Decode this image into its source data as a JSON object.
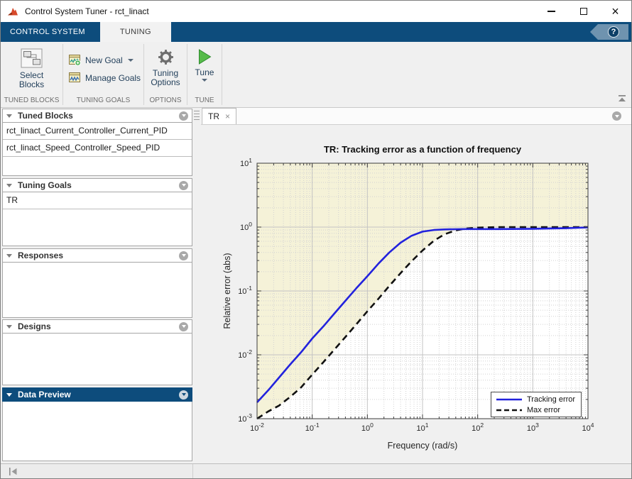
{
  "window": {
    "title": "Control System Tuner - rct_linact",
    "close_glyph": "×"
  },
  "ribbon": {
    "tabs": [
      {
        "label": "CONTROL SYSTEM",
        "active": false
      },
      {
        "label": "TUNING",
        "active": true
      }
    ],
    "help_glyph": "?",
    "groups": [
      {
        "label": "TUNED BLOCKS",
        "buttons": [
          {
            "label": "Select Blocks"
          }
        ]
      },
      {
        "label": "TUNING GOALS",
        "buttons": [
          {
            "label": "New Goal",
            "has_dropdown": true
          },
          {
            "label": "Manage Goals",
            "has_dropdown": false
          }
        ]
      },
      {
        "label": "OPTIONS",
        "buttons": [
          {
            "label": "Tuning Options"
          }
        ]
      },
      {
        "label": "TUNE",
        "buttons": [
          {
            "label": "Tune",
            "has_dropdown": true
          }
        ]
      }
    ]
  },
  "sidebar": {
    "panels": [
      {
        "title": "Tuned Blocks",
        "items": [
          "rct_linact_Current_Controller_Current_PID",
          "rct_linact_Speed_Controller_Speed_PID"
        ],
        "selected": false
      },
      {
        "title": "Tuning Goals",
        "items": [
          "TR"
        ],
        "selected": false
      },
      {
        "title": "Responses",
        "items": [],
        "selected": false
      },
      {
        "title": "Designs",
        "items": [],
        "selected": false
      },
      {
        "title": "Data Preview",
        "items": [],
        "selected": true
      }
    ]
  },
  "main": {
    "tabs": [
      {
        "label": "TR",
        "active": true,
        "close_glyph": "×"
      }
    ]
  },
  "chart_data": {
    "type": "line",
    "title": "TR: Tracking error as a function of frequency",
    "xlabel": "Frequency (rad/s)",
    "ylabel": "Relative error (abs)",
    "xscale": "log",
    "yscale": "log",
    "xlim": [
      0.01,
      10000
    ],
    "ylim": [
      0.001,
      10
    ],
    "xtick_exponents": [
      -2,
      -1,
      0,
      1,
      2,
      3,
      4
    ],
    "ytick_exponents": [
      -3,
      -2,
      -1,
      0,
      1
    ],
    "grid": true,
    "minor_grid": true,
    "legend_position": "lower right",
    "shaded_region": {
      "bound_series": "Max error",
      "side": "above",
      "fill": "#f5f2d8"
    },
    "series": [
      {
        "name": "Tracking error",
        "color": "#2222dd",
        "style": "solid",
        "width": 2.6,
        "x": [
          0.01,
          0.016,
          0.025,
          0.04,
          0.063,
          0.1,
          0.16,
          0.25,
          0.4,
          0.63,
          1,
          1.6,
          2.5,
          4,
          6.3,
          10,
          16,
          25,
          40,
          63,
          100,
          250,
          1000,
          4000,
          10000
        ],
        "y": [
          0.0018,
          0.0028,
          0.0044,
          0.0071,
          0.011,
          0.018,
          0.028,
          0.044,
          0.07,
          0.11,
          0.17,
          0.27,
          0.4,
          0.57,
          0.73,
          0.85,
          0.9,
          0.92,
          0.925,
          0.93,
          0.93,
          0.93,
          0.94,
          0.96,
          0.99
        ]
      },
      {
        "name": "Max error",
        "color": "#111111",
        "style": "dashed",
        "width": 2.6,
        "x": [
          0.01,
          0.016,
          0.025,
          0.04,
          0.063,
          0.1,
          0.16,
          0.25,
          0.4,
          0.63,
          1,
          1.6,
          2.5,
          4,
          6.3,
          10,
          16,
          25,
          40,
          63,
          100,
          250,
          1000,
          4000,
          10000
        ],
        "y": [
          0.001,
          0.0013,
          0.0016,
          0.0022,
          0.0031,
          0.0049,
          0.0077,
          0.012,
          0.019,
          0.03,
          0.048,
          0.076,
          0.12,
          0.19,
          0.29,
          0.43,
          0.61,
          0.77,
          0.89,
          0.95,
          0.98,
          1.0,
          1.0,
          1.0,
          1.0
        ]
      }
    ]
  },
  "colors": {
    "accent_blue": "#0d4c7c",
    "toolbar_bg": "#f0f0f0",
    "region_yellow": "#f5f2d8",
    "curve_blue": "#2222dd"
  }
}
